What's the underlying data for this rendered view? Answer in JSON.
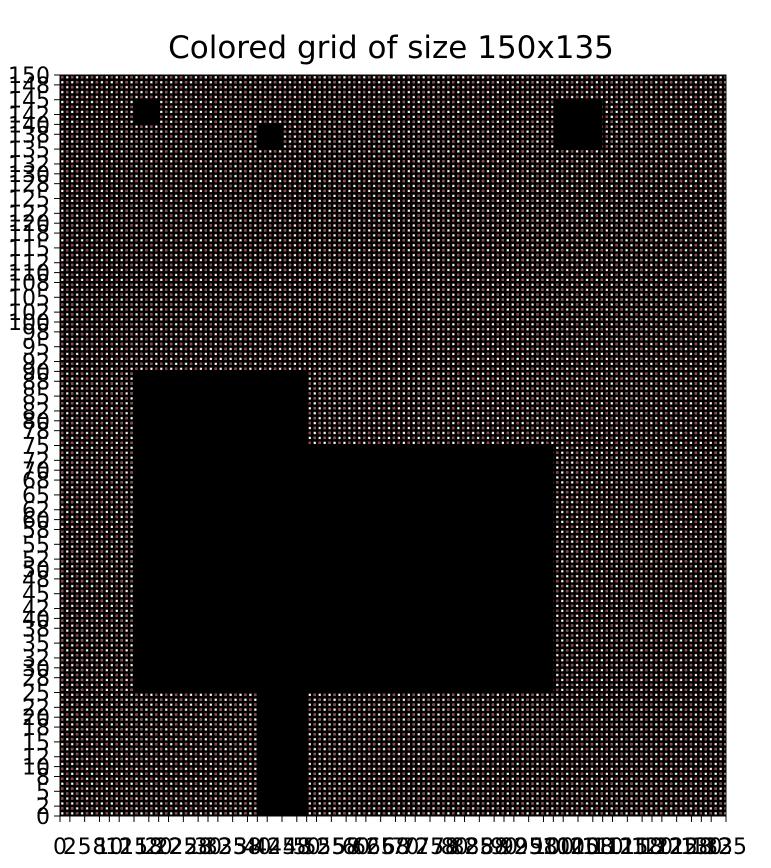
{
  "chart_data": {
    "type": "heatmap",
    "title": "Colored grid of size 150x135",
    "n_cols": 135,
    "n_rows": 150,
    "colors": {
      "grid_dot_light": "#ffffff",
      "grid_dot_dark": "#7a1a12",
      "background": "#000000"
    },
    "black_blocks": [
      {
        "x_start": 15,
        "x_end": 20,
        "y_start": 140,
        "y_end": 145
      },
      {
        "x_start": 40,
        "x_end": 45,
        "y_start": 135,
        "y_end": 140
      },
      {
        "x_start": 100,
        "x_end": 110,
        "y_start": 135,
        "y_end": 145
      },
      {
        "x_start": 15,
        "x_end": 50,
        "y_start": 25,
        "y_end": 90
      },
      {
        "x_start": 50,
        "x_end": 100,
        "y_start": 25,
        "y_end": 75
      },
      {
        "x_start": 40,
        "x_end": 50,
        "y_start": 0,
        "y_end": 25
      }
    ],
    "x_tick_labels": [
      "0",
      "2",
      "5",
      "8",
      "10",
      "12",
      "15",
      "18",
      "20",
      "22",
      "25",
      "28",
      "30",
      "32",
      "35",
      "38",
      "40",
      "42",
      "45",
      "48",
      "50",
      "52",
      "55",
      "58",
      "60",
      "62",
      "65",
      "68",
      "70",
      "72",
      "75",
      "78",
      "80",
      "82",
      "85",
      "88",
      "90",
      "92",
      "95",
      "98",
      "100",
      "102",
      "105",
      "108",
      "110",
      "112",
      "115",
      "118",
      "120",
      "122",
      "125",
      "128",
      "130",
      "132",
      "135"
    ],
    "y_tick_labels": [
      "0",
      "2",
      "5",
      "8",
      "10",
      "12",
      "15",
      "18",
      "20",
      "22",
      "25",
      "28",
      "30",
      "32",
      "35",
      "38",
      "40",
      "42",
      "45",
      "48",
      "50",
      "52",
      "55",
      "58",
      "60",
      "62",
      "65",
      "68",
      "70",
      "72",
      "75",
      "78",
      "80",
      "82",
      "85",
      "88",
      "90",
      "92",
      "95",
      "98",
      "100",
      "102",
      "105",
      "108",
      "110",
      "112",
      "115",
      "118",
      "120",
      "122",
      "125",
      "128",
      "130",
      "132",
      "135",
      "138",
      "140",
      "142",
      "145",
      "148",
      "150"
    ]
  }
}
